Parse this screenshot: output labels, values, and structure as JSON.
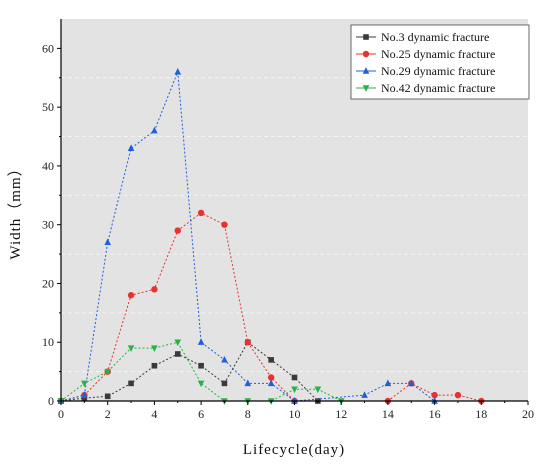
{
  "chart_data": {
    "type": "line",
    "xlabel": "Lifecycle(day)",
    "ylabel": "Width（mm）",
    "xlim": [
      0,
      20
    ],
    "ylim": [
      0,
      65
    ],
    "xticks": [
      0,
      2,
      4,
      6,
      8,
      10,
      12,
      14,
      16,
      18,
      20
    ],
    "yticks": [
      0,
      10,
      20,
      30,
      40,
      50,
      60
    ],
    "background": "#e3e3e3",
    "legend_position": "top-right",
    "series": [
      {
        "name": "No.3 dynamic fracture",
        "color": "#3a3a3a",
        "marker": "square",
        "x": [
          0,
          1,
          2,
          3,
          4,
          5,
          6,
          7,
          8,
          9,
          10,
          11
        ],
        "y": [
          0,
          0.5,
          0.8,
          3,
          6,
          8,
          6,
          3,
          10,
          7,
          4,
          0
        ]
      },
      {
        "name": "No.25 dynamic fracture",
        "color": "#e8322e",
        "marker": "circle",
        "x": [
          0,
          1,
          2,
          3,
          4,
          5,
          6,
          7,
          8,
          9,
          10,
          14,
          15,
          16,
          17,
          18
        ],
        "y": [
          0,
          1,
          5,
          18,
          19,
          29,
          32,
          30,
          10,
          4,
          0,
          0,
          3,
          1,
          1,
          0
        ]
      },
      {
        "name": "No.29 dynamic fracture",
        "color": "#1f5fdc",
        "marker": "triangle-up",
        "x": [
          0,
          1,
          2,
          3,
          4,
          5,
          6,
          7,
          8,
          9,
          10,
          13,
          14,
          15,
          16
        ],
        "y": [
          0,
          1,
          27,
          43,
          46,
          56,
          10,
          7,
          3,
          3,
          0,
          1,
          3,
          3,
          0
        ]
      },
      {
        "name": "No.42 dynamic fracture",
        "color": "#27b24a",
        "marker": "triangle-down",
        "x": [
          0,
          1,
          2,
          3,
          4,
          5,
          6,
          7,
          8,
          9,
          10,
          11,
          12
        ],
        "y": [
          0,
          3,
          5,
          9,
          9,
          10,
          3,
          0,
          0,
          0,
          2,
          2,
          0
        ]
      }
    ]
  }
}
